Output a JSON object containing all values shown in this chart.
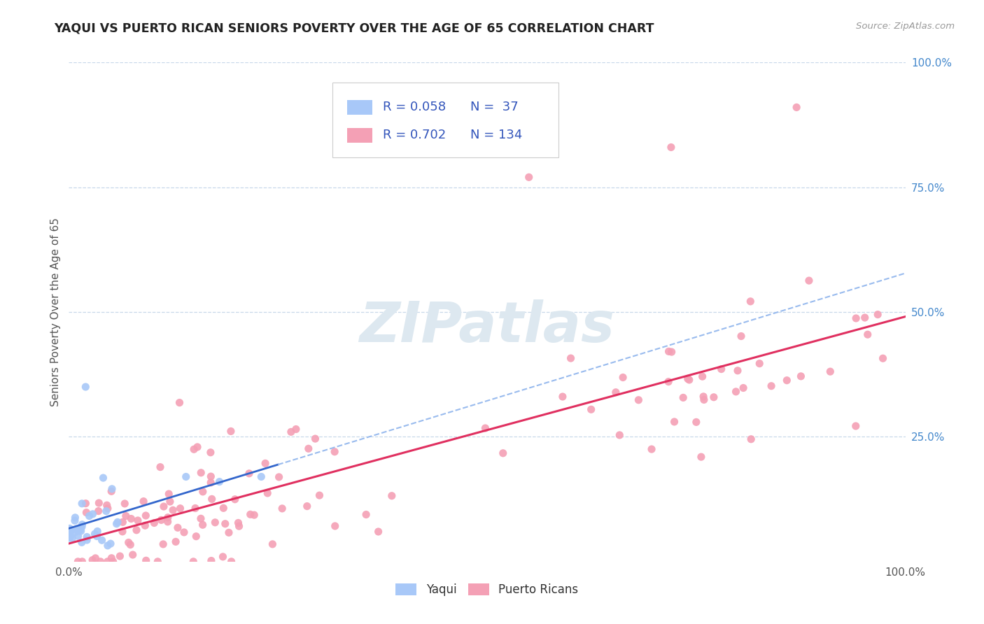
{
  "title": "YAQUI VS PUERTO RICAN SENIORS POVERTY OVER THE AGE OF 65 CORRELATION CHART",
  "source": "Source: ZipAtlas.com",
  "ylabel": "Seniors Poverty Over the Age of 65",
  "xlim": [
    0,
    1
  ],
  "ylim": [
    0,
    1
  ],
  "yaqui_R": 0.058,
  "yaqui_N": 37,
  "pr_R": 0.702,
  "pr_N": 134,
  "yaqui_color": "#a8c8f8",
  "pr_color": "#f4a0b5",
  "yaqui_line_color": "#3366cc",
  "yaqui_dash_color": "#99bbee",
  "pr_line_color": "#e03060",
  "background_color": "#ffffff",
  "grid_color": "#c8d8ea",
  "title_color": "#222222",
  "legend_text_color": "#3355bb",
  "watermark_color": "#dde8f0",
  "tick_color": "#4488cc",
  "axis_label_color": "#555555"
}
